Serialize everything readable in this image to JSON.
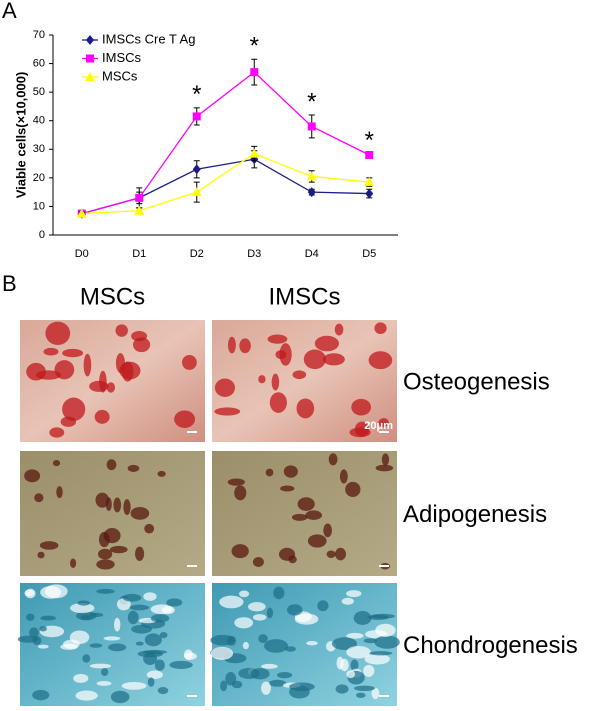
{
  "panel_labels": [
    "A",
    "B"
  ],
  "chart_data": {
    "type": "line",
    "y_label": "Viable cells(×10,000)",
    "categories": [
      "D0",
      "D1",
      "D2",
      "D3",
      "D4",
      "D5"
    ],
    "series": [
      {
        "name": "IMSCs Cre T Ag",
        "color": "#1c1c86",
        "marker": "diamond",
        "values": [
          7.5,
          13,
          23,
          26.5,
          15,
          14.5
        ],
        "errors": [
          0.5,
          2,
          3,
          3,
          1,
          1.5
        ]
      },
      {
        "name": "IMSCs",
        "color": "#ff00ff",
        "marker": "square",
        "values": [
          7.5,
          13,
          41.5,
          57,
          38,
          28
        ],
        "errors": [
          0.5,
          3.5,
          3,
          4.5,
          4,
          0.5
        ]
      },
      {
        "name": "MSCs",
        "color": "#ffff00",
        "marker": "triangle",
        "values": [
          7.5,
          8.5,
          15,
          28.5,
          20.5,
          18.5
        ],
        "errors": [
          0.5,
          1,
          3.5,
          2.5,
          2,
          1.5
        ]
      }
    ],
    "annotations": [
      {
        "text": "*",
        "x": "D2"
      },
      {
        "text": "*",
        "x": "D3"
      },
      {
        "text": "*",
        "x": "D4"
      },
      {
        "text": "*",
        "x": "D5"
      }
    ],
    "ylim": [
      0,
      70
    ],
    "yticks": [
      0,
      10,
      20,
      30,
      40,
      50,
      60,
      70
    ],
    "legend": "upper left"
  },
  "images": {
    "columns": [
      "MSCs",
      "IMSCs"
    ],
    "rows": [
      "Osteogenesis",
      "Adipogenesis",
      "Chondrogenesis"
    ],
    "scale_bar": "20μm"
  }
}
